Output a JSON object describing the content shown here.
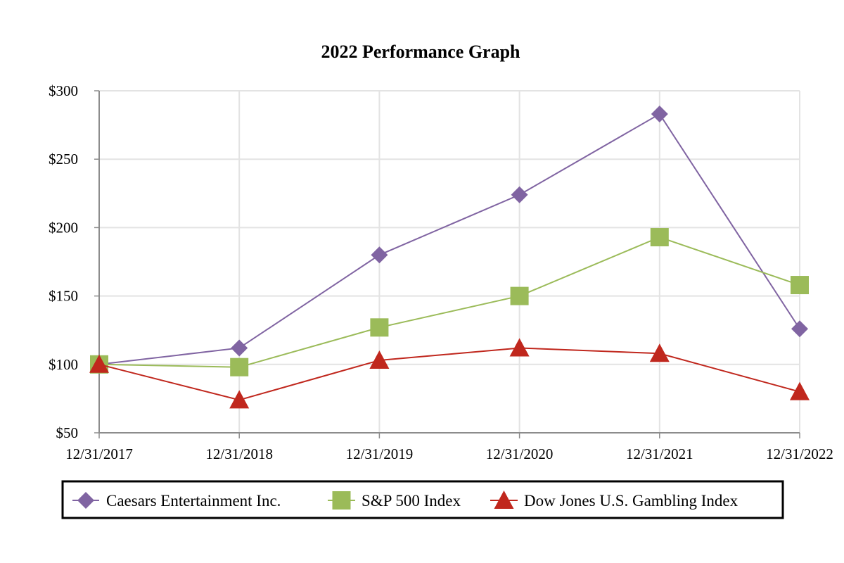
{
  "chart_data": {
    "type": "line",
    "title": "2022 Performance Graph",
    "xlabel": "",
    "ylabel": "",
    "categories": [
      "12/31/2017",
      "12/31/2018",
      "12/31/2019",
      "12/31/2020",
      "12/31/2021",
      "12/31/2022"
    ],
    "ylim": [
      50,
      300
    ],
    "yticks": [
      50,
      100,
      150,
      200,
      250,
      300
    ],
    "ytick_labels": [
      "$50",
      "$100",
      "$150",
      "$200",
      "$250",
      "$300"
    ],
    "grid": true,
    "legend_position": "bottom",
    "series": [
      {
        "name": "Caesars Entertainment  Inc.",
        "marker": "diamond",
        "color": "#8064a2",
        "values": [
          100,
          112,
          180,
          224,
          283,
          126
        ]
      },
      {
        "name": "S&P 500 Index",
        "marker": "square",
        "color": "#9bbb59",
        "values": [
          100,
          98,
          127,
          150,
          193,
          158
        ]
      },
      {
        "name": "Dow Jones U.S. Gambling Index",
        "marker": "triangle",
        "color": "#c0271d",
        "values": [
          100,
          74,
          103,
          112,
          108,
          80
        ]
      }
    ]
  }
}
